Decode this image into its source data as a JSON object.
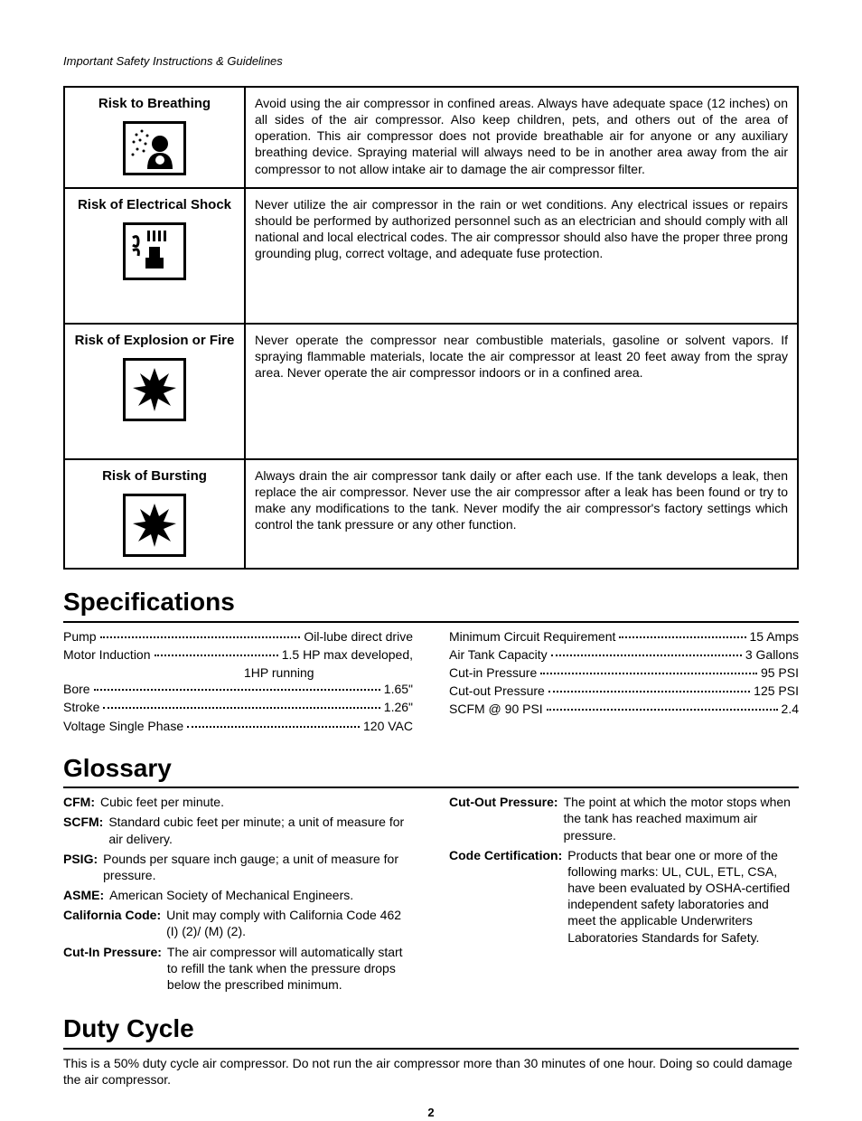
{
  "header": "Important Safety Instructions & Guidelines",
  "risks": [
    {
      "title": "Risk to Breathing",
      "desc": "Avoid using the air compressor in confined areas. Always have adequate space (12 inches) on all sides of the air compressor. Also keep children, pets, and others out of the area of operation. This air compressor does not provide breathable air for anyone or any auxiliary breathing device. Spraying material will always need to be in another area away from the air compressor to not allow intake air to damage the air compressor filter."
    },
    {
      "title": "Risk of Electrical Shock",
      "desc": "Never utilize the air compressor in the rain or wet conditions. Any electrical issues or repairs should be performed by authorized personnel such as an electrician and should comply with all national and local electrical codes. The air compressor should also have the proper three prong grounding plug, correct voltage, and adequate fuse protection."
    },
    {
      "title": "Risk of Explosion or Fire",
      "desc": "Never operate the compressor near combustible materials, gasoline or solvent vapors. If spraying flammable materials, locate the air compressor at least 20 feet away from the spray area. Never operate the air compressor indoors or in a confined area."
    },
    {
      "title": "Risk of Bursting",
      "desc": "Always drain the air compressor tank daily or after each use. If the tank develops a leak, then replace the air compressor. Never use the air compressor after a leak has been found or try to make any modifications to the tank. Never modify the air compressor's factory settings which control the tank pressure or any other function."
    }
  ],
  "sections": {
    "specs": "Specifications",
    "glossary": "Glossary",
    "duty": "Duty Cycle"
  },
  "specs_left": [
    {
      "label": "Pump",
      "value": "Oil-lube direct drive"
    },
    {
      "label": "Motor Induction",
      "value": "1.5 HP max developed,"
    },
    {
      "sub": "1HP running"
    },
    {
      "label": "Bore",
      "value": "1.65\""
    },
    {
      "label": "Stroke",
      "value": "1.26\""
    },
    {
      "label": "Voltage Single Phase",
      "value": "120 VAC"
    }
  ],
  "specs_right": [
    {
      "label": "Minimum Circuit Requirement",
      "value": "15 Amps"
    },
    {
      "label": "Air Tank Capacity",
      "value": "3 Gallons"
    },
    {
      "label": "Cut-in Pressure",
      "value": "95 PSI"
    },
    {
      "label": "Cut-out Pressure",
      "value": "125 PSI"
    },
    {
      "label": "SCFM @ 90 PSI",
      "value": "2.4"
    }
  ],
  "glossary_left": [
    {
      "term": "CFM:",
      "def": "Cubic feet per minute."
    },
    {
      "term": "SCFM:",
      "def": "Standard cubic feet per minute; a unit of measure for air delivery."
    },
    {
      "term": "PSIG:",
      "def": "Pounds per square inch gauge; a unit of measure for pressure."
    },
    {
      "term": "ASME:",
      "def": "American Society of Mechanical Engineers."
    },
    {
      "term": "California Code:",
      "def": "Unit may comply with California Code 462 (I) (2)/ (M) (2)."
    },
    {
      "term": "Cut-In Pressure:",
      "def": "The air compressor will automatically start to refill the tank when the pressure drops below the prescribed minimum."
    }
  ],
  "glossary_right": [
    {
      "term": "Cut-Out Pressure:",
      "def": "The point at which the motor stops when the tank has reached maximum air pressure."
    },
    {
      "term": "Code Certification:",
      "def": "Products that bear one or more of the following marks: UL, CUL, ETL, CSA, have been evaluated by OSHA-certified independent safety laboratories and meet the applicable Underwriters Laboratories Standards for Safety."
    }
  ],
  "duty_text": "This is a 50% duty cycle air compressor. Do not run the air compressor more than 30 minutes of one hour. Doing so could damage the air compressor.",
  "page_number": "2"
}
